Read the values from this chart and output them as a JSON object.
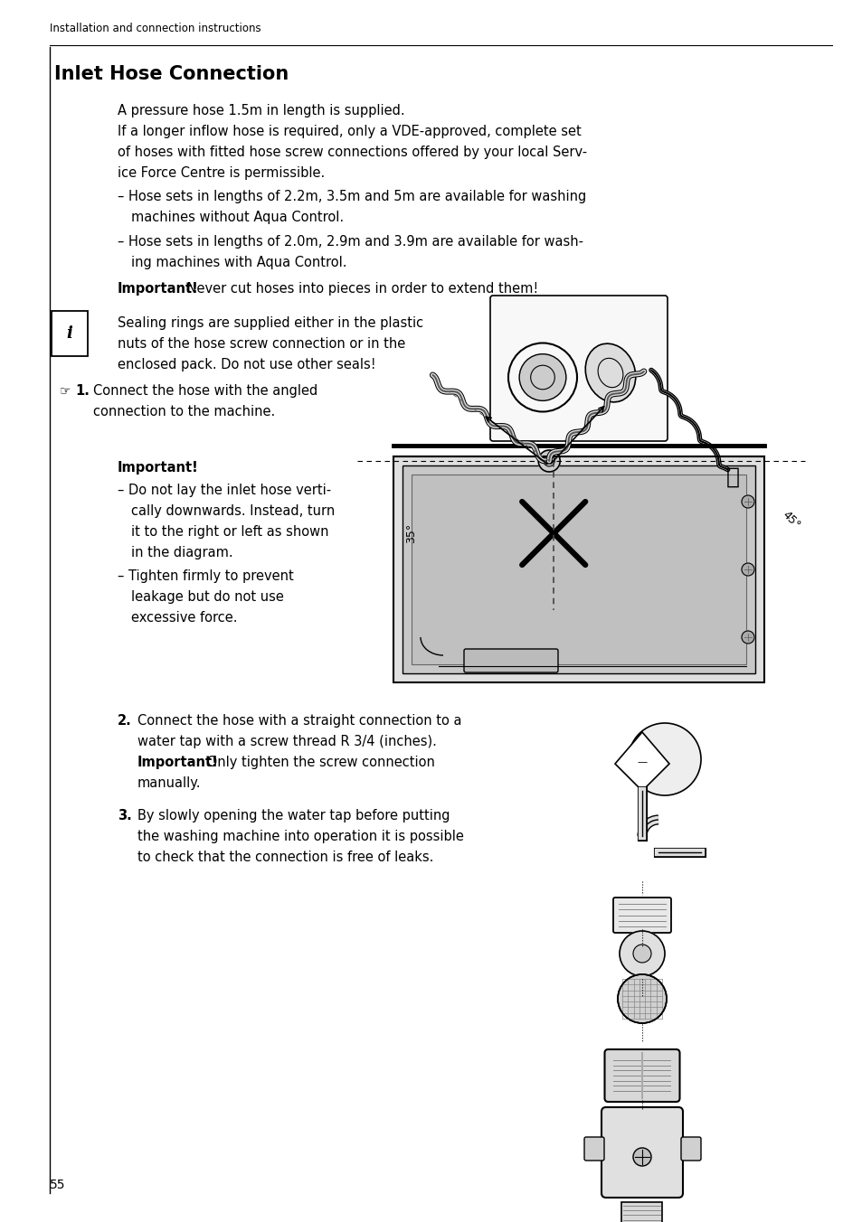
{
  "bg_color": "#ffffff",
  "page_num": "55",
  "header_text": "Installation and connection instructions",
  "title": "Inlet Hose Connection",
  "font_size_header": 8.5,
  "font_size_title": 15,
  "font_size_body": 10.5,
  "font_size_page": 10,
  "lm": 0.058,
  "tm": 0.135
}
